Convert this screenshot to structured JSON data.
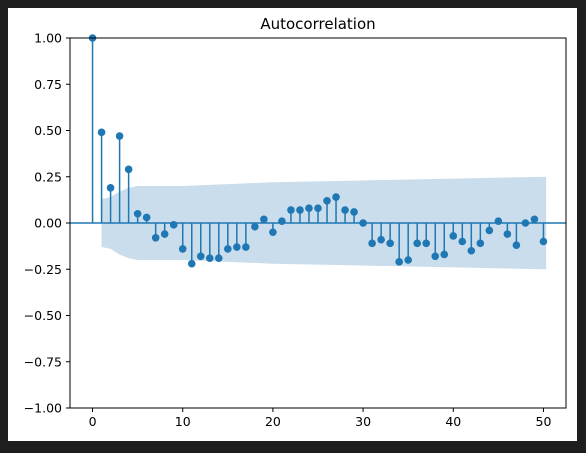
{
  "chart_data": {
    "type": "scatter",
    "title": "Autocorrelation",
    "xlabel": "",
    "ylabel": "",
    "xlim": [
      -2.5,
      52.5
    ],
    "ylim": [
      -1.0,
      1.0
    ],
    "x_ticks": [
      0,
      10,
      20,
      30,
      40,
      50
    ],
    "x_tick_labels": [
      "0",
      "10",
      "20",
      "30",
      "40",
      "50"
    ],
    "y_ticks": [
      1.0,
      0.75,
      0.5,
      0.25,
      0.0,
      -0.25,
      -0.5,
      -0.75,
      -1.0
    ],
    "y_tick_labels": [
      "1.00",
      "0.75",
      "0.50",
      "0.25",
      "0.00",
      "−0.25",
      "−0.50",
      "−0.75",
      "−1.00"
    ],
    "grid": false,
    "legend": "none",
    "colors": {
      "stem": "#1f77b4",
      "marker": "#1f77b4",
      "confidence_band": "#c6dbeb",
      "zero_line": "#1f77b4"
    },
    "lags": [
      0,
      1,
      2,
      3,
      4,
      5,
      6,
      7,
      8,
      9,
      10,
      11,
      12,
      13,
      14,
      15,
      16,
      17,
      18,
      19,
      20,
      21,
      22,
      23,
      24,
      25,
      26,
      27,
      28,
      29,
      30,
      31,
      32,
      33,
      34,
      35,
      36,
      37,
      38,
      39,
      40,
      41,
      42,
      43,
      44,
      45,
      46,
      47,
      48,
      49,
      50
    ],
    "acf": [
      1.0,
      0.49,
      0.19,
      0.47,
      0.29,
      0.05,
      0.03,
      -0.08,
      -0.06,
      -0.01,
      -0.14,
      -0.22,
      -0.18,
      -0.19,
      -0.19,
      -0.14,
      -0.13,
      -0.13,
      -0.02,
      0.02,
      -0.05,
      0.01,
      0.07,
      0.07,
      0.08,
      0.08,
      0.12,
      0.14,
      0.07,
      0.06,
      0.0,
      -0.11,
      -0.09,
      -0.11,
      -0.21,
      -0.2,
      -0.11,
      -0.11,
      -0.18,
      -0.17,
      -0.07,
      -0.1,
      -0.15,
      -0.11,
      -0.04,
      0.01,
      -0.06,
      -0.12,
      0.0,
      0.02,
      -0.1
    ],
    "confidence_band": {
      "lags": [
        1,
        2,
        3,
        4,
        5,
        10,
        20,
        30,
        40,
        50.3
      ],
      "upper": [
        0.13,
        0.14,
        0.17,
        0.19,
        0.2,
        0.2,
        0.22,
        0.23,
        0.24,
        0.25
      ],
      "lower": [
        -0.13,
        -0.14,
        -0.17,
        -0.19,
        -0.2,
        -0.2,
        -0.22,
        -0.23,
        -0.24,
        -0.25
      ]
    }
  }
}
